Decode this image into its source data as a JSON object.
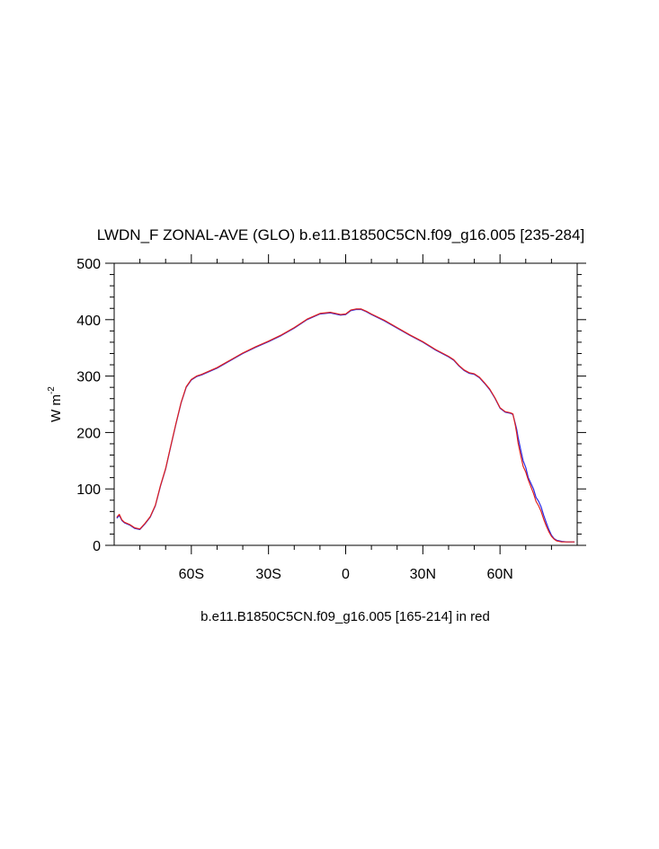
{
  "chart_data": {
    "type": "line",
    "title": "LWDN_F ZONAL-AVE (GLO) b.e11.B1850C5CN.f09_g16.005 [235-284]",
    "xlabel": "b.e11.B1850C5CN.f09_g16.005 [165-214] in red",
    "ylabel": "W m",
    "ylabel_exponent": "-2",
    "xlim": [
      -90,
      90
    ],
    "ylim": [
      0,
      500
    ],
    "grid": false,
    "x_ticks": [
      {
        "value": -60,
        "label": "60S"
      },
      {
        "value": -30,
        "label": "30S"
      },
      {
        "value": 0,
        "label": "0"
      },
      {
        "value": 30,
        "label": "30N"
      },
      {
        "value": 60,
        "label": "60N"
      }
    ],
    "y_ticks": [
      {
        "value": 0,
        "label": "0"
      },
      {
        "value": 100,
        "label": "100"
      },
      {
        "value": 200,
        "label": "200"
      },
      {
        "value": 300,
        "label": "300"
      },
      {
        "value": 400,
        "label": "400"
      },
      {
        "value": 500,
        "label": "500"
      }
    ],
    "colors": {
      "base": "#2a2ae6",
      "red": "#e0201c"
    },
    "series": [
      {
        "color": "#2a2ae6",
        "x": [
          -89,
          -88,
          -87,
          -86,
          -84,
          -82,
          -80,
          -78,
          -76,
          -74,
          -72,
          -70,
          -68,
          -66,
          -64,
          -62,
          -60,
          -58,
          -56,
          -54,
          -50,
          -45,
          -40,
          -35,
          -30,
          -25,
          -20,
          -15,
          -10,
          -6,
          -2,
          0,
          2,
          4,
          6,
          8,
          10,
          15,
          20,
          25,
          30,
          35,
          40,
          42,
          44,
          46,
          48,
          50,
          52,
          54,
          56,
          58,
          60,
          62,
          64,
          65,
          66,
          66.5,
          67,
          68,
          69,
          70,
          71,
          72,
          73,
          74,
          75,
          76,
          77,
          78,
          79,
          80,
          81,
          82,
          84,
          86,
          88,
          89
        ],
        "y": [
          48,
          53,
          44,
          40,
          36,
          30,
          28,
          38,
          50,
          70,
          105,
          135,
          175,
          215,
          252,
          280,
          293,
          299,
          302,
          306,
          314,
          327,
          340,
          351,
          361,
          372,
          385,
          400,
          410,
          412,
          408,
          409,
          416,
          418,
          418,
          414,
          409,
          398,
          385,
          372,
          360,
          346,
          334,
          328,
          318,
          310,
          305,
          303,
          297,
          287,
          276,
          261,
          243,
          236,
          234,
          232,
          215,
          205,
          192,
          170,
          150,
          138,
          120,
          110,
          100,
          85,
          78,
          68,
          53,
          40,
          28,
          18,
          12,
          9,
          7,
          6,
          6,
          6
        ]
      },
      {
        "color": "#e0201c",
        "x": [
          -89,
          -88,
          -87,
          -86,
          -84,
          -82,
          -80,
          -78,
          -76,
          -74,
          -72,
          -70,
          -68,
          -66,
          -64,
          -62,
          -60,
          -58,
          -56,
          -54,
          -50,
          -45,
          -40,
          -35,
          -30,
          -25,
          -20,
          -15,
          -10,
          -6,
          -2,
          0,
          2,
          4,
          6,
          8,
          10,
          15,
          20,
          25,
          30,
          35,
          40,
          42,
          44,
          46,
          48,
          50,
          52,
          54,
          56,
          58,
          60,
          62,
          64,
          65,
          66,
          66.5,
          67,
          68,
          69,
          70,
          71,
          72,
          73,
          74,
          75,
          76,
          77,
          78,
          79,
          80,
          81,
          82,
          84,
          86,
          88,
          89
        ],
        "y": [
          50,
          55,
          45,
          41,
          37,
          31,
          29,
          39,
          51,
          71,
          106,
          136,
          176,
          216,
          253,
          281,
          294,
          300,
          303,
          307,
          315,
          328,
          341,
          352,
          362,
          373,
          386,
          401,
          411,
          413,
          409,
          410,
          417,
          419,
          419,
          415,
          410,
          399,
          386,
          373,
          361,
          347,
          335,
          329,
          319,
          311,
          306,
          304,
          298,
          288,
          277,
          262,
          244,
          237,
          235,
          233,
          212,
          198,
          182,
          160,
          140,
          130,
          116,
          104,
          92,
          78,
          70,
          60,
          46,
          34,
          24,
          16,
          11,
          8,
          6,
          6,
          6,
          6
        ]
      }
    ]
  }
}
